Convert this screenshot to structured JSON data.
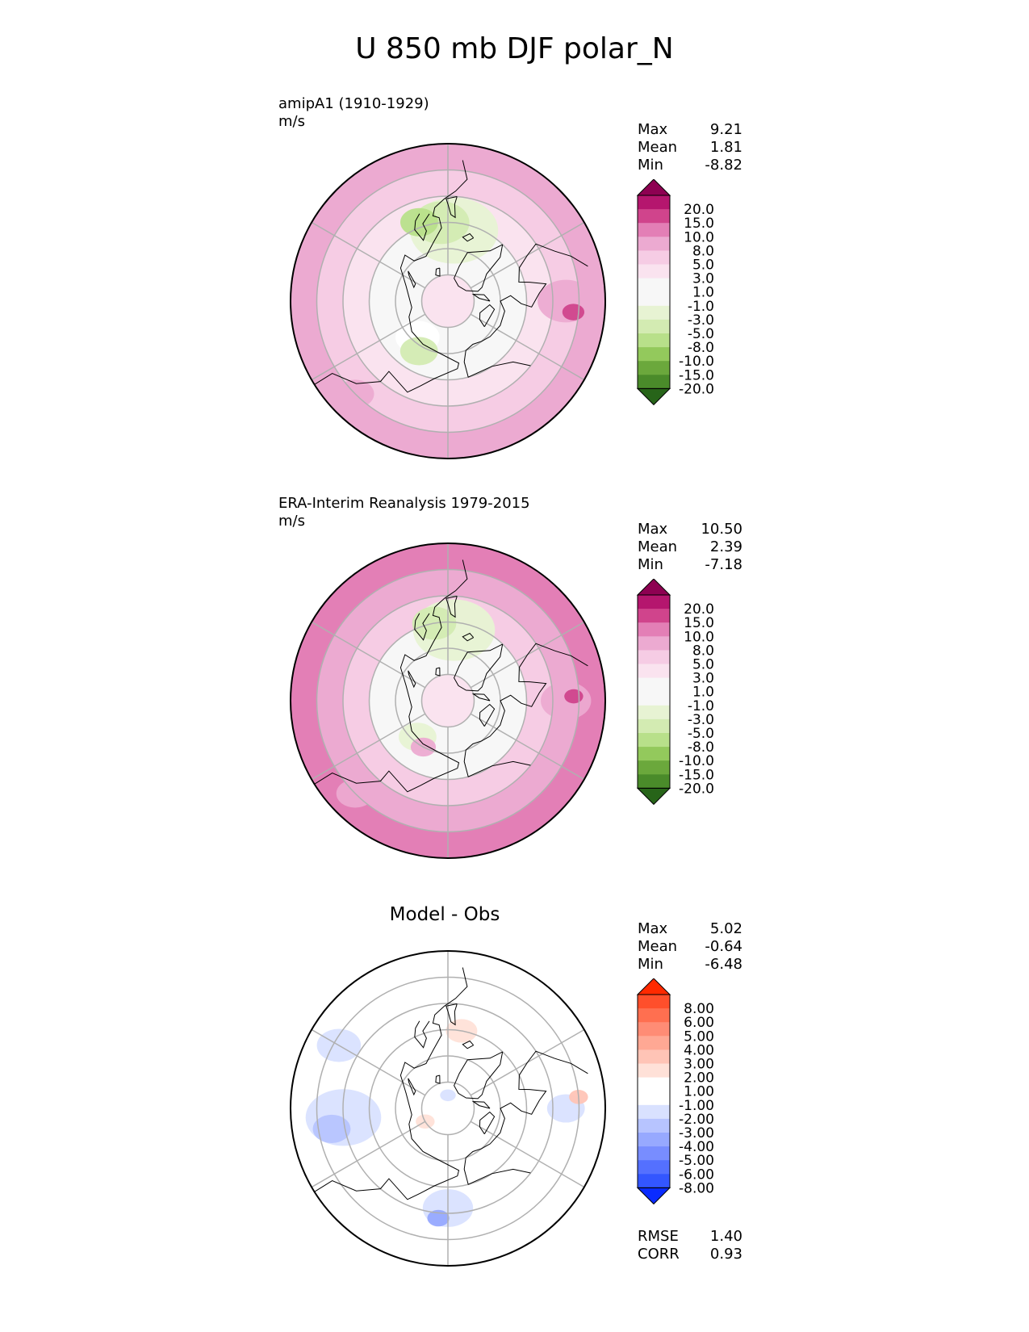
{
  "figure": {
    "title": "U 850 mb DJF polar_N"
  },
  "panels": [
    {
      "id": "test",
      "title_line1": "amipA1 (1910-1929)",
      "title_line2": "m/s",
      "stats": [
        {
          "label": "Max",
          "value": "9.21"
        },
        {
          "label": "Mean",
          "value": "1.81"
        },
        {
          "label": "Min",
          "value": "-8.82"
        }
      ],
      "colorbar": {
        "labels": [
          "20.0",
          "15.0",
          "10.0",
          "8.0",
          "5.0",
          "3.0",
          "1.0",
          "-1.0",
          "-3.0",
          "-5.0",
          "-8.0",
          "-10.0",
          "-15.0",
          "-20.0"
        ],
        "colors": [
          "#8e0152",
          "#b5166e",
          "#d0448c",
          "#e37fb6",
          "#ecaad1",
          "#f6cce4",
          "#fae3ef",
          "#f7f7f7",
          "#f7f7f7",
          "#e7f3d3",
          "#d3ebb2",
          "#b8e08a",
          "#93c95c",
          "#6ba83c",
          "#4a8b2a",
          "#276419"
        ]
      },
      "field": {
        "ring_colors": [
          "#fae3ef",
          "#f7f7f7",
          "#f7f7f7",
          "#fae3ef",
          "#f6cce4",
          "#ecaad1"
        ],
        "blobs": [
          {
            "lat": 63,
            "lon": -5,
            "r": 0.28,
            "color": "#e7f3d3"
          },
          {
            "lat": 60,
            "lon": 5,
            "r": 0.18,
            "color": "#d3ebb2"
          },
          {
            "lat": 58,
            "lon": 20,
            "r": 0.12,
            "color": "#b8e08a"
          },
          {
            "lat": 72,
            "lon": 140,
            "r": 0.14,
            "color": "#ffffff"
          },
          {
            "lat": 68,
            "lon": 150,
            "r": 0.12,
            "color": "#d3ebb2"
          },
          {
            "lat": 45,
            "lon": -90,
            "r": 0.18,
            "color": "#ecaad1"
          },
          {
            "lat": 42,
            "lon": -95,
            "r": 0.07,
            "color": "#d0448c"
          },
          {
            "lat": 40,
            "lon": 135,
            "r": 0.12,
            "color": "#ecaad1"
          }
        ]
      },
      "land_color": null
    },
    {
      "id": "ref",
      "title_line1": "ERA-Interim Reanalysis 1979-2015",
      "title_line2": "m/s",
      "stats": [
        {
          "label": "Max",
          "value": "10.50"
        },
        {
          "label": "Mean",
          "value": "2.39"
        },
        {
          "label": "Min",
          "value": "-7.18"
        }
      ],
      "colorbar": {
        "labels": [
          "20.0",
          "15.0",
          "10.0",
          "8.0",
          "5.0",
          "3.0",
          "1.0",
          "-1.0",
          "-3.0",
          "-5.0",
          "-8.0",
          "-10.0",
          "-15.0",
          "-20.0"
        ],
        "colors": [
          "#8e0152",
          "#b5166e",
          "#d0448c",
          "#e37fb6",
          "#ecaad1",
          "#f6cce4",
          "#fae3ef",
          "#f7f7f7",
          "#f7f7f7",
          "#e7f3d3",
          "#d3ebb2",
          "#b8e08a",
          "#93c95c",
          "#6ba83c",
          "#4a8b2a",
          "#276419"
        ]
      },
      "field": {
        "ring_colors": [
          "#fae3ef",
          "#f7f7f7",
          "#f7f7f7",
          "#f6cce4",
          "#ecaad1",
          "#e37fb6"
        ],
        "blobs": [
          {
            "lat": 63,
            "lon": -5,
            "r": 0.26,
            "color": "#e7f3d3"
          },
          {
            "lat": 60,
            "lon": 10,
            "r": 0.14,
            "color": "#d3ebb2"
          },
          {
            "lat": 72,
            "lon": 140,
            "r": 0.12,
            "color": "#e7f3d3"
          },
          {
            "lat": 70,
            "lon": 152,
            "r": 0.08,
            "color": "#ecaad1"
          },
          {
            "lat": 45,
            "lon": -90,
            "r": 0.16,
            "color": "#ecaad1"
          },
          {
            "lat": 42,
            "lon": -88,
            "r": 0.06,
            "color": "#d0448c"
          },
          {
            "lat": 40,
            "lon": 135,
            "r": 0.12,
            "color": "#ecaad1"
          }
        ]
      },
      "land_color": null
    },
    {
      "id": "diff",
      "title": "Model - Obs",
      "stats": [
        {
          "label": "Max",
          "value": "5.02"
        },
        {
          "label": "Mean",
          "value": "-0.64"
        },
        {
          "label": "Min",
          "value": "-6.48"
        }
      ],
      "extra_stats": [
        {
          "label": "RMSE",
          "value": "1.40"
        },
        {
          "label": "CORR",
          "value": "0.93"
        }
      ],
      "colorbar": {
        "labels": [
          "8.00",
          "6.00",
          "5.00",
          "4.00",
          "3.00",
          "2.00",
          "1.00",
          "-1.00",
          "-2.00",
          "-3.00",
          "-4.00",
          "-5.00",
          "-6.00",
          "-8.00"
        ],
        "colors": [
          "#ff2a00",
          "#ff4f2b",
          "#ff6f50",
          "#ff8c75",
          "#ffa894",
          "#ffc4b6",
          "#ffe1d8",
          "#ffffff",
          "#ffffff",
          "#d9e1ff",
          "#b7c4ff",
          "#97a9ff",
          "#788dff",
          "#5470ff",
          "#3356ff",
          "#0a2bff"
        ]
      },
      "field": {
        "ring_colors": [
          "#ffffff",
          "#ffffff",
          "#ffffff",
          "#ffffff",
          "#ffffff",
          "#ffffff"
        ],
        "blobs": [
          {
            "lat": 50,
            "lon": 95,
            "r": 0.24,
            "color": "#d9e1ff"
          },
          {
            "lat": 45,
            "lon": 100,
            "r": 0.12,
            "color": "#b7c4ff"
          },
          {
            "lat": 42,
            "lon": 60,
            "r": 0.14,
            "color": "#d9e1ff"
          },
          {
            "lat": 52,
            "lon": 180,
            "r": 0.16,
            "color": "#d9e1ff"
          },
          {
            "lat": 48,
            "lon": 175,
            "r": 0.07,
            "color": "#97a9ff"
          },
          {
            "lat": 60,
            "lon": -10,
            "r": 0.1,
            "color": "#ffe1d8"
          },
          {
            "lat": 85,
            "lon": 0,
            "r": 0.05,
            "color": "#d9e1ff"
          },
          {
            "lat": 80,
            "lon": 120,
            "r": 0.06,
            "color": "#ffe1d8"
          },
          {
            "lat": 45,
            "lon": -90,
            "r": 0.12,
            "color": "#d9e1ff"
          },
          {
            "lat": 40,
            "lon": -85,
            "r": 0.06,
            "color": "#ffc4b6"
          }
        ]
      },
      "land_color": null
    }
  ],
  "map": {
    "projection": "north polar stereographic",
    "latitude_circles": [
      80,
      70,
      60,
      50,
      40
    ],
    "meridians": [
      0,
      60,
      120,
      180,
      240,
      300
    ],
    "grid_color": "#b0b0b0"
  }
}
